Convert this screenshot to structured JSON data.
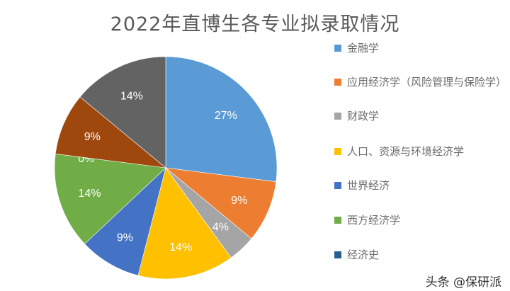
{
  "chart_data": {
    "type": "pie",
    "title": "2022年直博生各专业拟录取情况",
    "start_angle": "12 o'clock",
    "direction": "clockwise",
    "legend_position": "right",
    "slices": [
      {
        "name": "金融学",
        "value": 27,
        "label": "27%",
        "color": "#5b9bd5"
      },
      {
        "name": "应用经济学（风险管理与保险学）",
        "value": 9,
        "label": "9%",
        "color": "#ed7d31"
      },
      {
        "name": "财政学",
        "value": 4,
        "label": "4%",
        "color": "#a5a5a5"
      },
      {
        "name": "人口、资源与环境经济学",
        "value": 14,
        "label": "14%",
        "color": "#ffc000"
      },
      {
        "name": "世界经济",
        "value": 9,
        "label": "9%",
        "color": "#4472c4"
      },
      {
        "name": "西方经济学",
        "value": 14,
        "label": "14%",
        "color": "#70ad47"
      },
      {
        "name": "经济史",
        "value": 0,
        "label": "0%",
        "color": "#255e91"
      },
      {
        "name": "",
        "value": 9,
        "label": "9%",
        "color": "#9e480e"
      },
      {
        "name": "",
        "value": 14,
        "label": "14%",
        "color": "#636363"
      }
    ]
  },
  "watermark": "头条 @保研派"
}
